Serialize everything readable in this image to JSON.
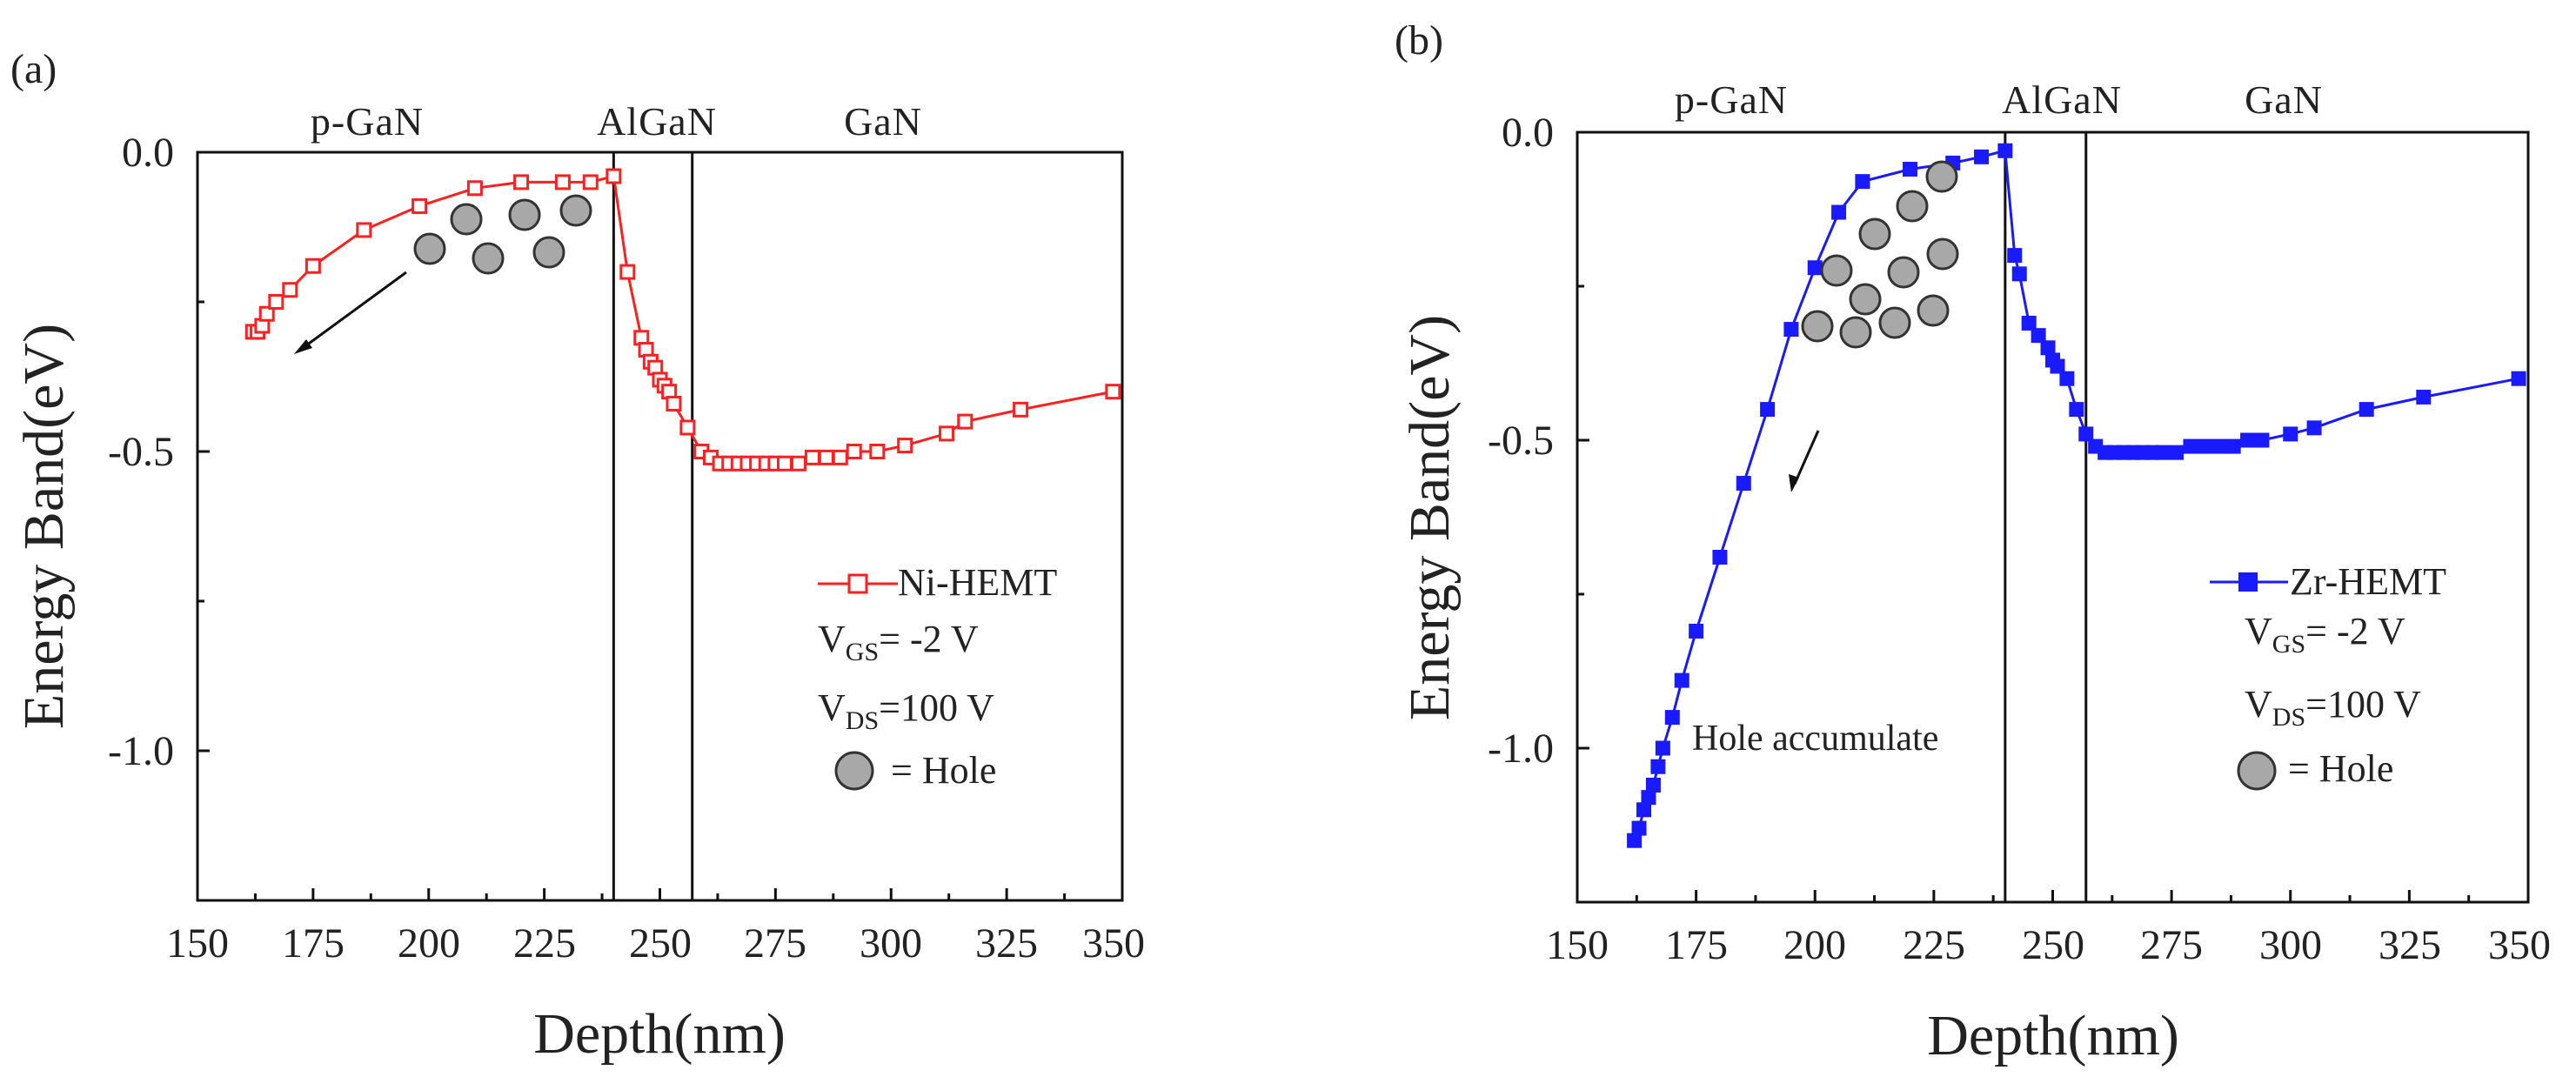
{
  "chart_data": [
    {
      "type": "line",
      "panel_label": "(a)",
      "xlabel": "Depth(nm)",
      "ylabel": "Energy Band(eV)",
      "xlim": [
        150,
        350
      ],
      "ylim": [
        -1.25,
        0.0
      ],
      "xticks": [
        "150",
        "175",
        "200",
        "225",
        "250",
        "275",
        "300",
        "325",
        "350"
      ],
      "yticks": [
        "0.0",
        "-0.5",
        "-1.0"
      ],
      "region_labels": [
        "p-GaN",
        "AlGaN",
        "GaN"
      ],
      "boundaries": [
        240,
        257
      ],
      "color": "#ff2020",
      "marker": "open-square",
      "series": [
        {
          "name": "Ni-HEMT",
          "x": [
            162,
            163,
            164,
            165,
            167,
            170,
            175,
            186,
            198,
            210,
            220,
            229,
            235,
            240,
            243,
            246,
            247,
            248,
            249,
            250,
            251,
            252,
            253,
            256,
            259,
            261,
            263,
            265,
            267,
            269,
            271,
            273,
            275,
            277,
            280,
            283,
            286,
            289,
            292,
            297,
            303,
            312,
            316,
            328,
            348
          ],
          "y": [
            -0.3,
            -0.3,
            -0.29,
            -0.27,
            -0.25,
            -0.23,
            -0.19,
            -0.13,
            -0.09,
            -0.06,
            -0.05,
            -0.05,
            -0.05,
            -0.04,
            -0.2,
            -0.31,
            -0.33,
            -0.35,
            -0.36,
            -0.38,
            -0.39,
            -0.4,
            -0.42,
            -0.46,
            -0.5,
            -0.51,
            -0.52,
            -0.52,
            -0.52,
            -0.52,
            -0.52,
            -0.52,
            -0.52,
            -0.52,
            -0.52,
            -0.51,
            -0.51,
            -0.51,
            -0.5,
            -0.5,
            -0.49,
            -0.47,
            -0.45,
            -0.43,
            -0.4
          ]
        }
      ],
      "legend": {
        "series_label": "Ni-HEMT",
        "vgs_main": "V",
        "vgs_sub": "GS",
        "vgs_rest": "= -2 V",
        "vds_main": "V",
        "vds_sub": "DS",
        "vds_rest": "=100 V",
        "hole_label": "= Hole"
      }
    },
    {
      "type": "line",
      "panel_label": "(b)",
      "xlabel": "Depth(nm)",
      "ylabel": "Energy Band(eV)",
      "xlim": [
        150,
        350
      ],
      "ylim": [
        -1.25,
        0.0
      ],
      "xticks": [
        "150",
        "175",
        "200",
        "225",
        "250",
        "275",
        "300",
        "325",
        "350"
      ],
      "yticks": [
        "0.0",
        "-0.5",
        "-1.0"
      ],
      "region_labels": [
        "p-GaN",
        "AlGaN",
        "GaN"
      ],
      "boundaries": [
        240,
        257
      ],
      "color": "#1a1aff",
      "marker": "filled-square",
      "annotation": "Hole accumulate",
      "series": [
        {
          "name": "Zr-HEMT",
          "x": [
            162,
            163,
            164,
            165,
            166,
            167,
            168,
            170,
            172,
            175,
            180,
            185,
            190,
            195,
            200,
            205,
            210,
            220,
            229,
            235,
            240,
            242,
            243,
            245,
            247,
            249,
            250,
            251,
            253,
            255,
            257,
            259,
            261,
            263,
            265,
            267,
            269,
            271,
            273,
            276,
            279,
            282,
            285,
            288,
            291,
            294,
            300,
            305,
            316,
            328,
            348
          ],
          "y": [
            -1.15,
            -1.13,
            -1.1,
            -1.08,
            -1.06,
            -1.03,
            -1.0,
            -0.95,
            -0.89,
            -0.81,
            -0.69,
            -0.57,
            -0.45,
            -0.32,
            -0.22,
            -0.13,
            -0.08,
            -0.06,
            -0.05,
            -0.04,
            -0.03,
            -0.2,
            -0.23,
            -0.31,
            -0.33,
            -0.35,
            -0.37,
            -0.38,
            -0.4,
            -0.45,
            -0.49,
            -0.51,
            -0.52,
            -0.52,
            -0.52,
            -0.52,
            -0.52,
            -0.52,
            -0.52,
            -0.52,
            -0.51,
            -0.51,
            -0.51,
            -0.51,
            -0.5,
            -0.5,
            -0.49,
            -0.48,
            -0.45,
            -0.43,
            -0.4
          ]
        }
      ],
      "legend": {
        "series_label": "Zr-HEMT",
        "vgs_main": "V",
        "vgs_sub": "GS",
        "vgs_rest": "= -2 V",
        "vds_main": "V",
        "vds_sub": "DS",
        "vds_rest": "=100 V",
        "hole_label": "= Hole"
      }
    }
  ]
}
